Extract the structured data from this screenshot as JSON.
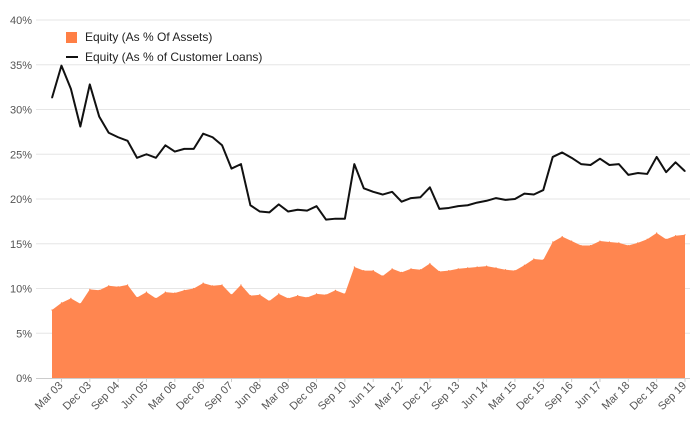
{
  "colors": {
    "area": "#ff7f45",
    "area_fill": "#ff8650",
    "line": "#111111",
    "grid": "#e6e6e6",
    "axis_text": "#555555"
  },
  "chart_data": {
    "type": "area+line",
    "title": "",
    "xlabel": "",
    "ylabel": "",
    "ylim": [
      0,
      40
    ],
    "y_ticks": [
      "0%",
      "5%",
      "10%",
      "15%",
      "20%",
      "25%",
      "30%",
      "35%",
      "40%"
    ],
    "x_tick_labels": [
      "Mar 03",
      "Dec 03",
      "Sep 04",
      "Jun 05",
      "Mar 06",
      "Dec 06",
      "Sep 07",
      "Jun 08",
      "Mar 09",
      "Dec 09",
      "Sep 10",
      "Jun 11",
      "Mar 12",
      "Dec 12",
      "Sep 13",
      "Jun 14",
      "Mar 15",
      "Dec 15",
      "Sep 16",
      "Jun 17",
      "Mar 18",
      "Dec 18",
      "Sep 19"
    ],
    "legend_position": "top-left",
    "series": [
      {
        "name": "Equity (As % Of Assets)",
        "kind": "area",
        "values": [
          7.6,
          8.4,
          8.9,
          8.3,
          9.9,
          9.8,
          10.3,
          10.2,
          10.4,
          9.0,
          9.6,
          8.9,
          9.6,
          9.5,
          9.8,
          10.0,
          10.6,
          10.3,
          10.4,
          9.3,
          10.4,
          9.2,
          9.3,
          8.6,
          9.4,
          8.9,
          9.2,
          9.0,
          9.4,
          9.3,
          9.8,
          9.4,
          12.4,
          12.0,
          12.0,
          11.4,
          12.2,
          11.8,
          12.2,
          12.1,
          12.8,
          11.9,
          12.0,
          12.2,
          12.3,
          12.4,
          12.5,
          12.3,
          12.1,
          12.0,
          12.6,
          13.3,
          13.2,
          15.2,
          15.8,
          15.3,
          14.8,
          14.8,
          15.3,
          15.2,
          15.1,
          14.8,
          15.1,
          15.5,
          16.2,
          15.5,
          15.9,
          16.0
        ]
      },
      {
        "name": "Equity (As % of Customer Loans)",
        "kind": "line",
        "values": [
          31.3,
          34.9,
          32.3,
          28.1,
          32.8,
          29.2,
          27.4,
          26.9,
          26.5,
          24.6,
          25.0,
          24.6,
          26.0,
          25.3,
          25.6,
          25.6,
          27.3,
          26.9,
          26.0,
          23.4,
          23.9,
          19.3,
          18.6,
          18.5,
          19.4,
          18.6,
          18.8,
          18.7,
          19.2,
          17.7,
          17.8,
          17.8,
          23.9,
          21.2,
          20.8,
          20.5,
          20.8,
          19.7,
          20.1,
          20.2,
          21.3,
          18.9,
          19.0,
          19.2,
          19.3,
          19.6,
          19.8,
          20.1,
          19.9,
          20.0,
          20.6,
          20.5,
          21.0,
          24.7,
          25.2,
          24.6,
          23.9,
          23.8,
          24.5,
          23.8,
          23.9,
          22.7,
          22.9,
          22.8,
          24.7,
          23.0,
          24.1,
          23.1
        ]
      }
    ]
  }
}
